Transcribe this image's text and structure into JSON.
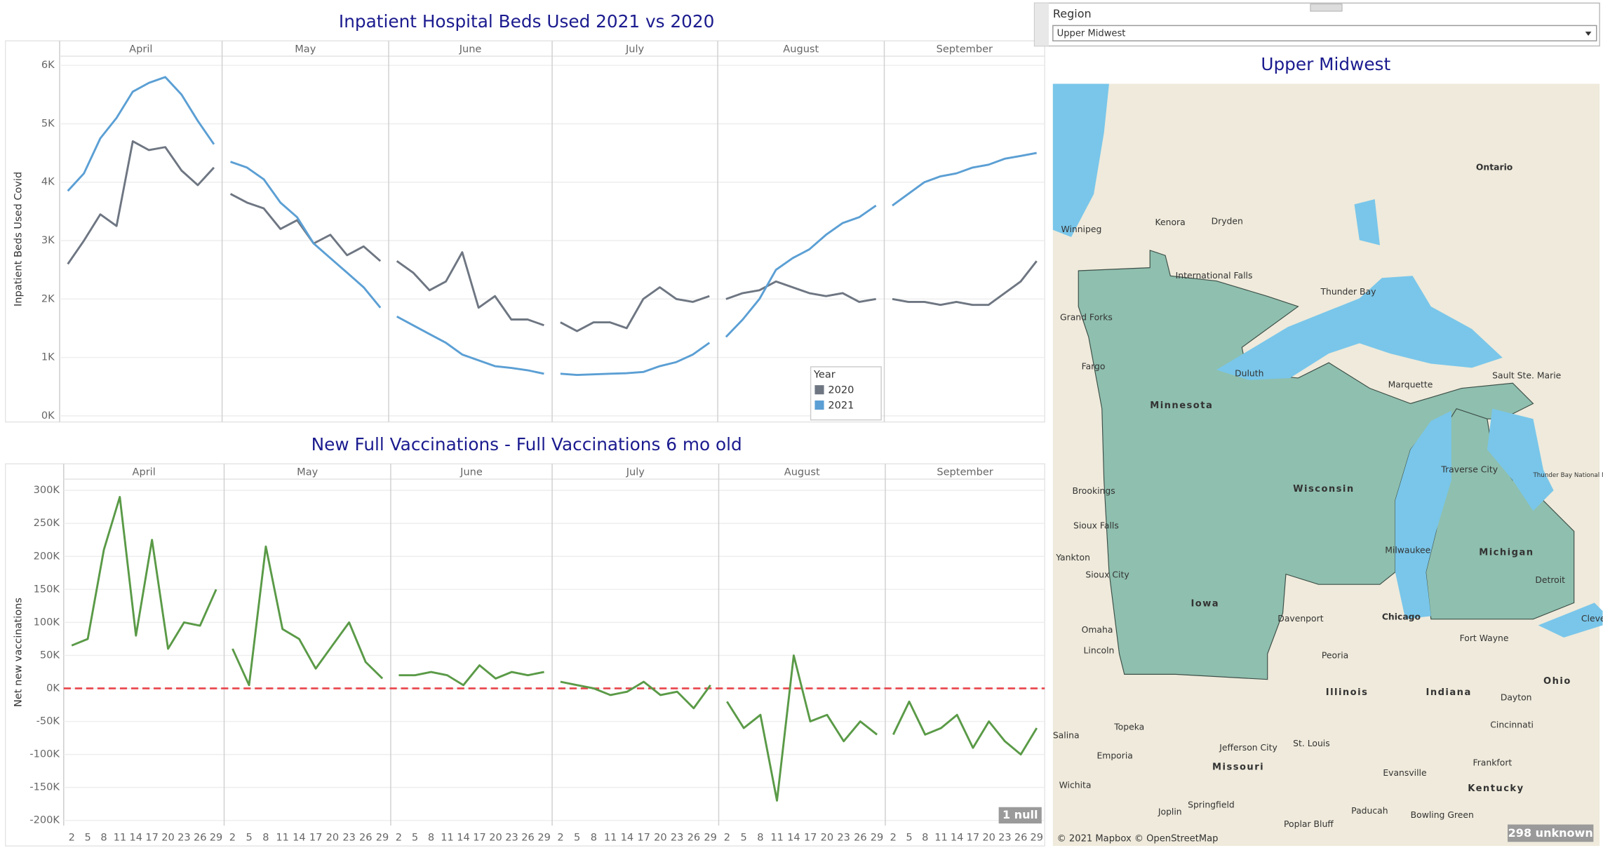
{
  "chart_data": [
    {
      "type": "line",
      "title": "Inpatient Hospital Beds Used 2021 vs 2020",
      "y_label": "Inpatient Beds Used Covid",
      "months": [
        "April",
        "May",
        "June",
        "July",
        "August",
        "September"
      ],
      "ylim": [
        -105,
        6157
      ],
      "yticks": [
        {
          "value": 0,
          "label": "0K"
        },
        {
          "value": 1000,
          "label": "1K"
        },
        {
          "value": 2000,
          "label": "2K"
        },
        {
          "value": 3000,
          "label": "3K"
        },
        {
          "value": 4000,
          "label": "4K"
        },
        {
          "value": 5000,
          "label": "5K"
        },
        {
          "value": 6000,
          "label": "6K"
        }
      ],
      "grid": true,
      "legend": "lower-right",
      "legend_title": "Year",
      "series": [
        {
          "name": "2020",
          "color": "#6e7682",
          "values": [
            2600,
            3000,
            3450,
            3250,
            4700,
            4550,
            4600,
            4200,
            3950,
            4250,
            3800,
            3650,
            3550,
            3200,
            3350,
            2950,
            3100,
            2750,
            2900,
            2650,
            2650,
            2450,
            2150,
            2300,
            2800,
            1850,
            2050,
            1650,
            1650,
            1550,
            1600,
            1450,
            1600,
            1600,
            1500,
            2000,
            2200,
            2000,
            1950,
            2050,
            2000,
            2100,
            2150,
            2300,
            2200,
            2100,
            2050,
            2100,
            1950,
            2000,
            2000,
            1950,
            1950,
            1900,
            1950,
            1900,
            1900,
            2100,
            2300,
            2650
          ]
        },
        {
          "name": "2021",
          "color": "#5b9fd4",
          "values": [
            3850,
            4150,
            4750,
            5100,
            5550,
            5700,
            5800,
            5500,
            5050,
            4650,
            4350,
            4250,
            4050,
            3650,
            3400,
            2950,
            2700,
            2450,
            2200,
            1850,
            1700,
            1550,
            1400,
            1250,
            1050,
            950,
            850,
            820,
            780,
            720,
            720,
            700,
            710,
            720,
            730,
            750,
            850,
            920,
            1050,
            1250,
            1350,
            1650,
            2000,
            2500,
            2700,
            2850,
            3100,
            3300,
            3400,
            3600,
            3600,
            3800,
            4000,
            4100,
            4150,
            4250,
            4300,
            4400,
            4450,
            4500
          ]
        }
      ]
    },
    {
      "type": "line",
      "title": "New Full Vaccinations - Full Vaccinations 6 mo old",
      "y_label": "Net new vaccinations",
      "months": [
        "April",
        "May",
        "June",
        "July",
        "August",
        "September"
      ],
      "days": [
        2,
        5,
        8,
        11,
        14,
        17,
        20,
        23,
        26,
        29
      ],
      "ylim": [
        -207700,
        317000
      ],
      "yticks": [
        {
          "value": -200000,
          "label": "-200K"
        },
        {
          "value": -150000,
          "label": "-150K"
        },
        {
          "value": -100000,
          "label": "-100K"
        },
        {
          "value": -50000,
          "label": "-50K"
        },
        {
          "value": 0,
          "label": "0K"
        },
        {
          "value": 50000,
          "label": "50K"
        },
        {
          "value": 100000,
          "label": "100K"
        },
        {
          "value": 150000,
          "label": "150K"
        },
        {
          "value": 200000,
          "label": "200K"
        },
        {
          "value": 250000,
          "label": "250K"
        },
        {
          "value": 300000,
          "label": "300K"
        }
      ],
      "grid": true,
      "color": "#5a9a47",
      "reference_line": {
        "value": 0,
        "color": "#e8434a",
        "dashed": true
      },
      "null_note": "1 null",
      "values": [
        65000,
        75000,
        210000,
        290000,
        80000,
        225000,
        60000,
        100000,
        95000,
        150000,
        60000,
        5000,
        215000,
        90000,
        75000,
        30000,
        65000,
        100000,
        40000,
        15000,
        20000,
        20000,
        25000,
        20000,
        5000,
        35000,
        15000,
        25000,
        20000,
        25000,
        10000,
        5000,
        0,
        -10000,
        -5000,
        10000,
        -10000,
        -5000,
        -30000,
        5000,
        -20000,
        -60000,
        -40000,
        -170000,
        50000,
        -50000,
        -40000,
        -80000,
        -50000,
        -70000,
        -70000,
        -20000,
        -70000,
        -60000,
        -40000,
        -90000,
        -50000,
        -80000,
        -100000,
        -60000
      ]
    }
  ],
  "map": {
    "region_label": "Region",
    "region_value": "Upper Midwest",
    "title": "Upper Midwest",
    "attribution": "© 2021 Mapbox © OpenStreetMap",
    "unknown_badge": "298 unknown",
    "labels": [
      "Ontario",
      "Winnipeg",
      "Kenora",
      "Dryden",
      "International Falls",
      "Thunder Bay",
      "Grand Forks",
      "Fargo",
      "Duluth",
      "Sault Ste. Marie",
      "Marquette",
      "Minnesota",
      "Traverse City",
      "Brookings",
      "Sioux Falls",
      "Yankton",
      "Sioux City",
      "Iowa",
      "Wisconsin",
      "Michigan",
      "Milwaukee",
      "Chicago",
      "Davenport",
      "Detroit",
      "Omaha",
      "Lincoln",
      "Peoria",
      "Fort Wayne",
      "Ohio",
      "Illinois",
      "Indiana",
      "Dayton",
      "Topeka",
      "Salina",
      "Emporia",
      "Jefferson City",
      "St. Louis",
      "Missouri",
      "Cincinnati",
      "Frankfort",
      "Kentucky",
      "Evansville",
      "Wichita",
      "Springfield",
      "Joplin",
      "Paducah",
      "Bowling Green",
      "Poplar Bluff",
      "Cleve",
      "Thunder Bay National Marine Sanctuary"
    ]
  }
}
